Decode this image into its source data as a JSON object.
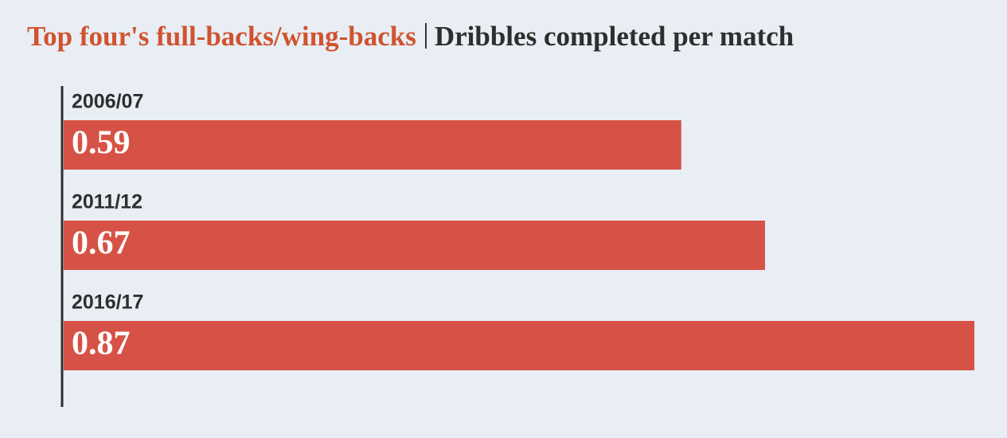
{
  "chart_data": {
    "type": "bar",
    "orientation": "horizontal",
    "title": "Top four's full-backs/wing-backs",
    "subtitle": "Dribbles completed per match",
    "categories": [
      "2006/07",
      "2011/12",
      "2016/17"
    ],
    "values": [
      0.59,
      0.67,
      0.87
    ],
    "color": "#d75246"
  }
}
